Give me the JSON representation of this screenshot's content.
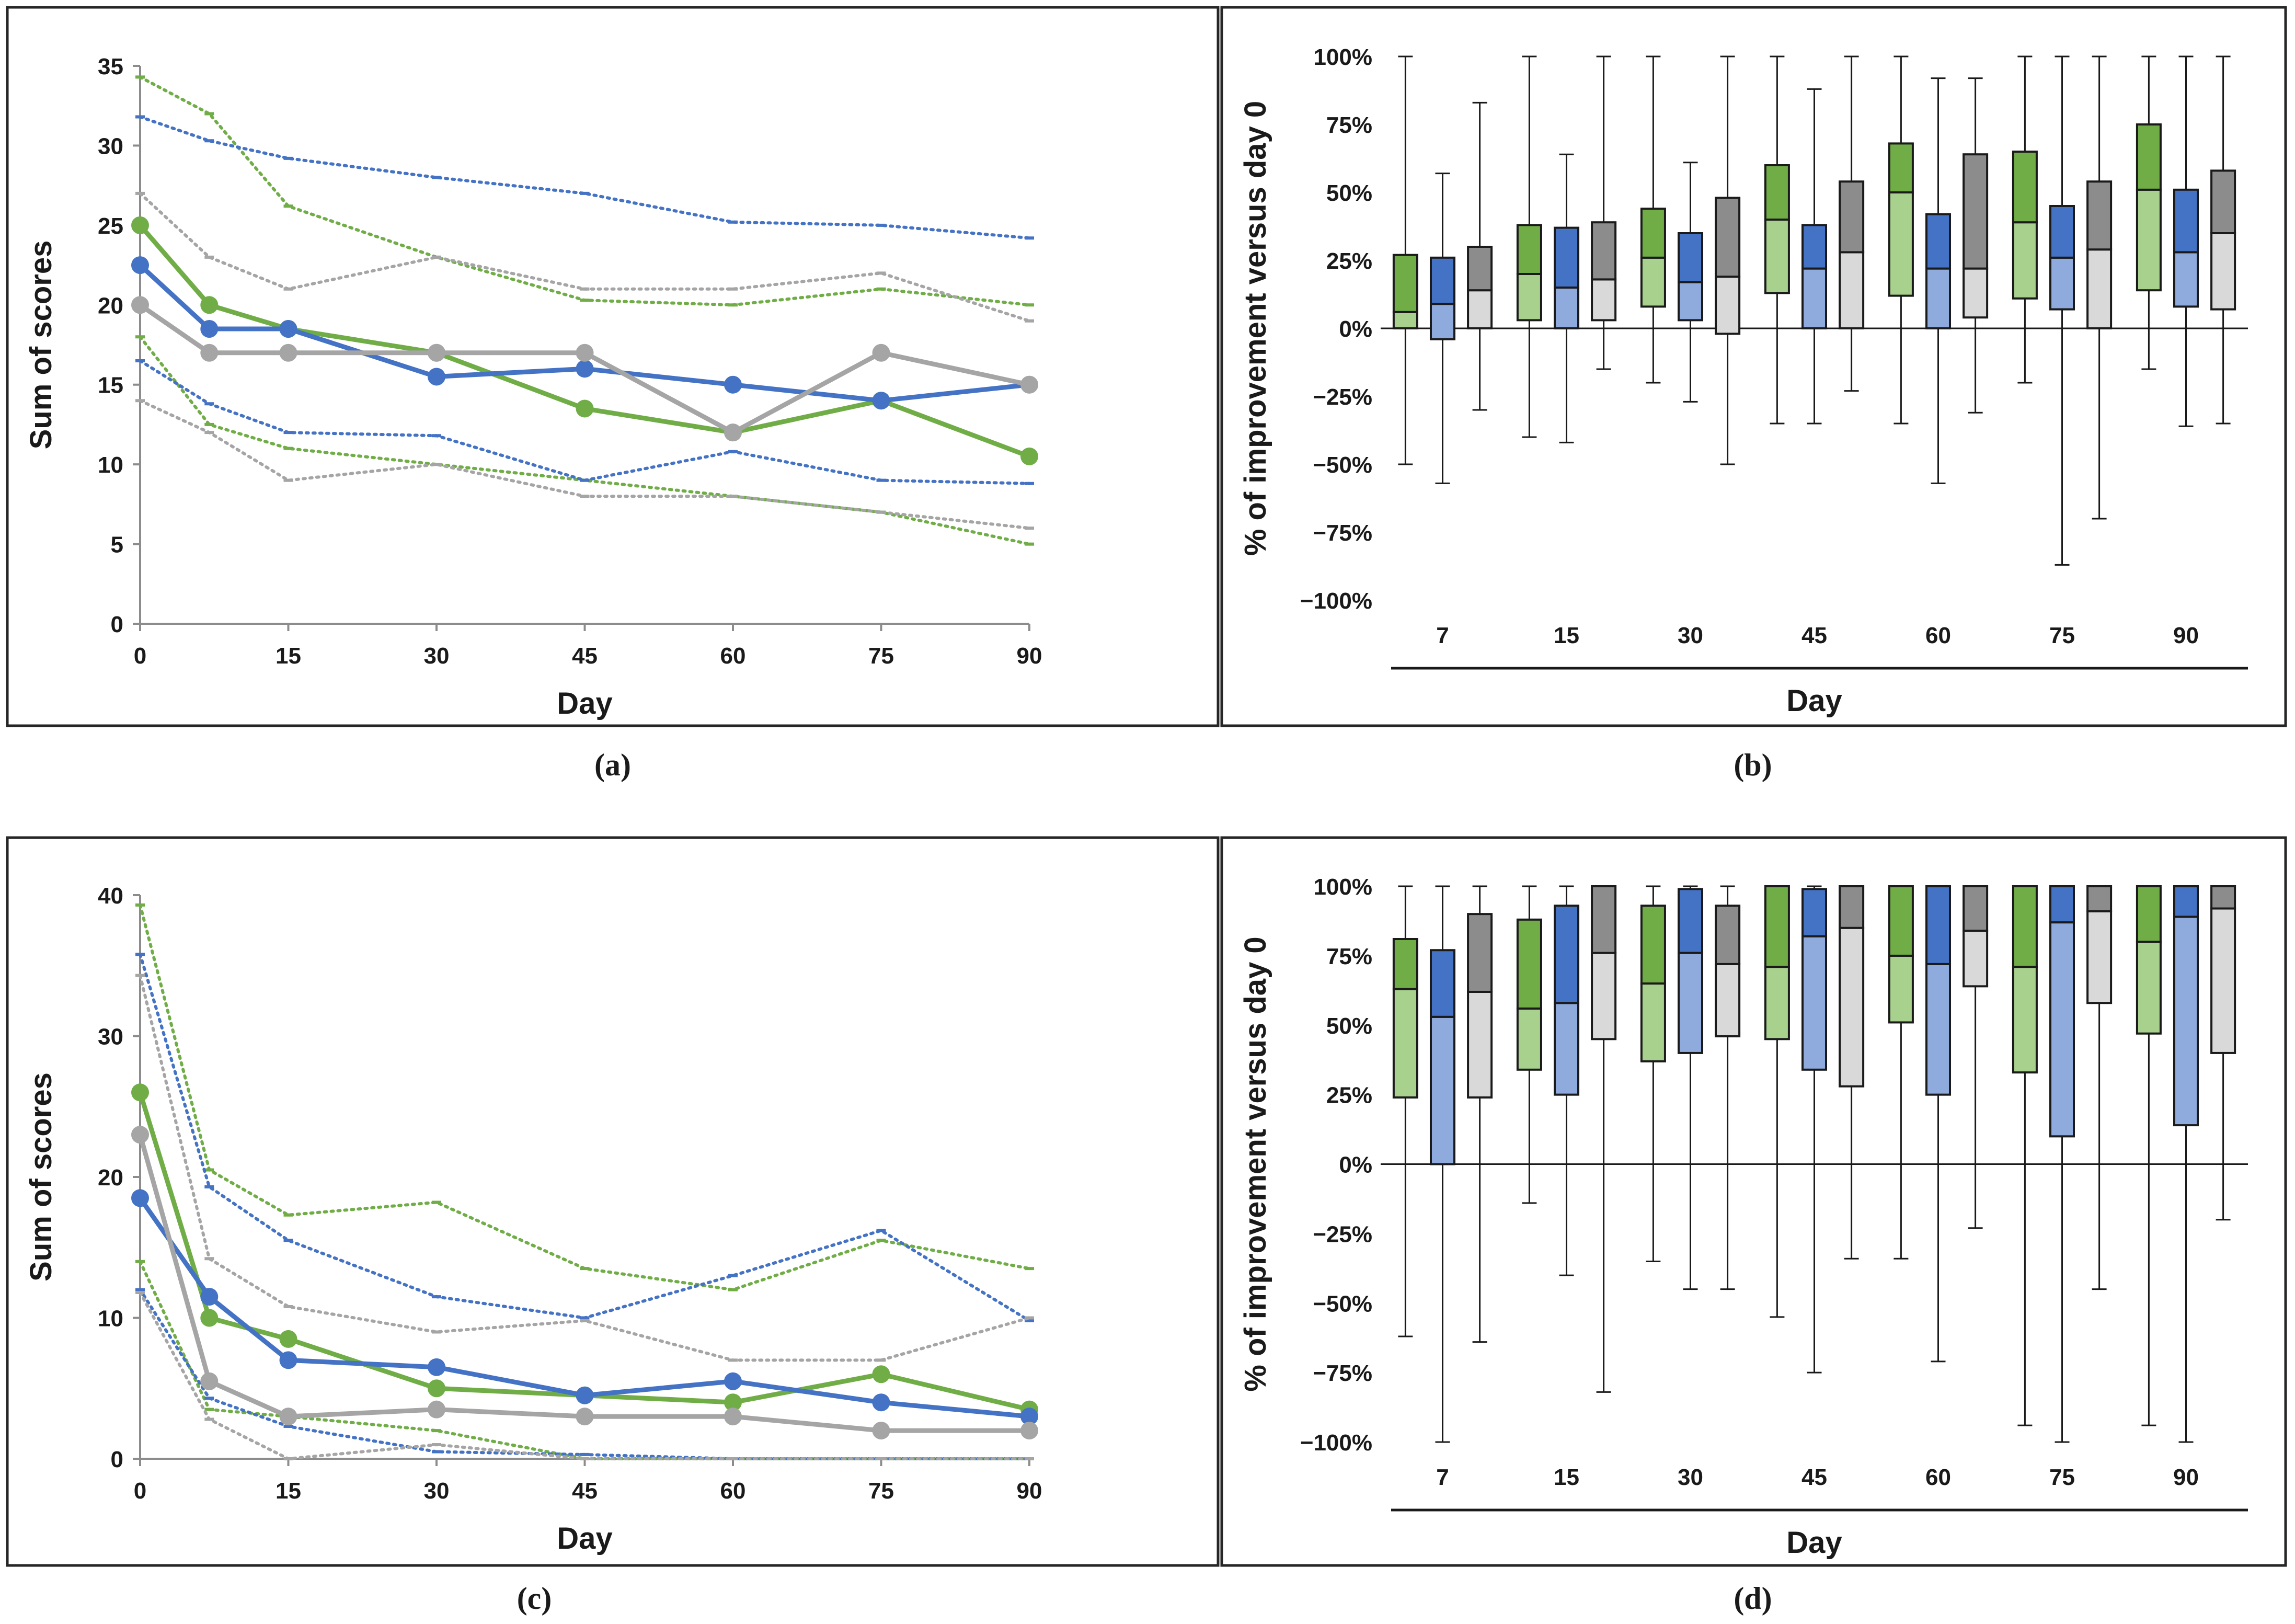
{
  "figure": {
    "captions": [
      "(a)",
      "(b)",
      "(c)",
      "(d)"
    ]
  },
  "colors": {
    "green": "#70ad47",
    "green_light": "#a9d18e",
    "blue": "#4472c4",
    "blue_light": "#8faadc",
    "gray": "#a5a5a5",
    "gray_light": "#d9d9d9",
    "gray_dark": "#8c8c8c"
  },
  "chart_data": [
    {
      "id": "a",
      "type": "line",
      "caption": "(a)",
      "xlabel": "Day",
      "ylabel": "Sum of scores",
      "xlim": [
        0,
        90
      ],
      "ylim": [
        0,
        35
      ],
      "xticks": [
        "0",
        "15",
        "30",
        "45",
        "60",
        "75",
        "90"
      ],
      "yticks": [
        "0",
        "5",
        "10",
        "15",
        "20",
        "25",
        "30",
        "35"
      ],
      "x": [
        0,
        7,
        15,
        30,
        45,
        60,
        75,
        90
      ],
      "series": [
        {
          "name": "green median",
          "color": "green",
          "style": "solid",
          "values": [
            25,
            20,
            18.5,
            17,
            13.5,
            12,
            14,
            10.5
          ]
        },
        {
          "name": "blue median",
          "color": "blue",
          "style": "solid",
          "values": [
            22.5,
            18.5,
            18.5,
            15.5,
            16,
            15,
            14,
            15
          ]
        },
        {
          "name": "gray median",
          "color": "gray",
          "style": "solid",
          "values": [
            20,
            17,
            17,
            17,
            17,
            12,
            17,
            15
          ]
        },
        {
          "name": "green upper",
          "color": "green",
          "style": "dotted",
          "values": [
            34.3,
            32,
            26.2,
            23,
            20.3,
            20,
            21,
            20
          ]
        },
        {
          "name": "green lower",
          "color": "green",
          "style": "dotted",
          "values": [
            18,
            12.5,
            11,
            10,
            9,
            8,
            7,
            5
          ]
        },
        {
          "name": "blue upper",
          "color": "blue",
          "style": "dotted",
          "values": [
            31.8,
            30.3,
            29.2,
            28,
            27,
            25.2,
            25,
            24.2
          ]
        },
        {
          "name": "blue lower",
          "color": "blue",
          "style": "dotted",
          "values": [
            16.5,
            13.8,
            12,
            11.8,
            9,
            10.8,
            9,
            8.8
          ]
        },
        {
          "name": "gray upper",
          "color": "gray",
          "style": "dotted",
          "values": [
            27,
            23,
            21,
            23,
            21,
            21,
            22,
            19
          ]
        },
        {
          "name": "gray lower",
          "color": "gray",
          "style": "dotted",
          "values": [
            14,
            12,
            9,
            10,
            8,
            8,
            7,
            6
          ]
        }
      ]
    },
    {
      "id": "b",
      "type": "box",
      "caption": "(b)",
      "xlabel": "Day",
      "ylabel": "% of improvement versus day 0",
      "ylim": [
        -100,
        100
      ],
      "yticks": [
        "100%",
        "75%",
        "50%",
        "25%",
        "0%",
        "−25%",
        "−50%",
        "−75%",
        "−100%"
      ],
      "categories": [
        "7",
        "15",
        "30",
        "45",
        "60",
        "75",
        "90"
      ],
      "groups": [
        {
          "group": "7",
          "boxes": [
            {
              "color": "green",
              "min": -50,
              "q1": 0,
              "median": 6,
              "q3": 27,
              "max": 100
            },
            {
              "color": "blue",
              "min": -57,
              "q1": -4,
              "median": 9,
              "q3": 26,
              "max": 57
            },
            {
              "color": "gray",
              "min": -30,
              "q1": 0,
              "median": 14,
              "q3": 30,
              "max": 83
            }
          ]
        },
        {
          "group": "15",
          "boxes": [
            {
              "color": "green",
              "min": -40,
              "q1": 3,
              "median": 20,
              "q3": 38,
              "max": 100
            },
            {
              "color": "blue",
              "min": -42,
              "q1": 0,
              "median": 15,
              "q3": 37,
              "max": 64
            },
            {
              "color": "gray",
              "min": -15,
              "q1": 3,
              "median": 18,
              "q3": 39,
              "max": 100
            }
          ]
        },
        {
          "group": "30",
          "boxes": [
            {
              "color": "green",
              "min": -20,
              "q1": 8,
              "median": 26,
              "q3": 44,
              "max": 100
            },
            {
              "color": "blue",
              "min": -27,
              "q1": 3,
              "median": 17,
              "q3": 35,
              "max": 61
            },
            {
              "color": "gray",
              "min": -50,
              "q1": -2,
              "median": 19,
              "q3": 48,
              "max": 100
            }
          ]
        },
        {
          "group": "45",
          "boxes": [
            {
              "color": "green",
              "min": -35,
              "q1": 13,
              "median": 40,
              "q3": 60,
              "max": 100
            },
            {
              "color": "blue",
              "min": -35,
              "q1": 0,
              "median": 22,
              "q3": 38,
              "max": 88
            },
            {
              "color": "gray",
              "min": -23,
              "q1": 0,
              "median": 28,
              "q3": 54,
              "max": 100
            }
          ]
        },
        {
          "group": "60",
          "boxes": [
            {
              "color": "green",
              "min": -35,
              "q1": 12,
              "median": 50,
              "q3": 68,
              "max": 100
            },
            {
              "color": "blue",
              "min": -57,
              "q1": 0,
              "median": 22,
              "q3": 42,
              "max": 92
            },
            {
              "color": "gray",
              "min": -31,
              "q1": 4,
              "median": 22,
              "q3": 64,
              "max": 92
            }
          ]
        },
        {
          "group": "75",
          "boxes": [
            {
              "color": "green",
              "min": -20,
              "q1": 11,
              "median": 39,
              "q3": 65,
              "max": 100
            },
            {
              "color": "blue",
              "min": -87,
              "q1": 7,
              "median": 26,
              "q3": 45,
              "max": 100
            },
            {
              "color": "gray",
              "min": -70,
              "q1": 0,
              "median": 29,
              "q3": 54,
              "max": 100
            }
          ]
        },
        {
          "group": "90",
          "boxes": [
            {
              "color": "green",
              "min": -15,
              "q1": 14,
              "median": 51,
              "q3": 75,
              "max": 100
            },
            {
              "color": "blue",
              "min": -36,
              "q1": 8,
              "median": 28,
              "q3": 51,
              "max": 100
            },
            {
              "color": "gray",
              "min": -35,
              "q1": 7,
              "median": 35,
              "q3": 58,
              "max": 100
            }
          ]
        }
      ]
    },
    {
      "id": "c",
      "type": "line",
      "caption": "(c)",
      "xlabel": "Day",
      "ylabel": "Sum of scores",
      "xlim": [
        0,
        90
      ],
      "ylim": [
        0,
        40
      ],
      "xticks": [
        "0",
        "15",
        "30",
        "45",
        "60",
        "75",
        "90"
      ],
      "yticks": [
        "0",
        "10",
        "20",
        "30",
        "40"
      ],
      "x": [
        0,
        7,
        15,
        30,
        45,
        60,
        75,
        90
      ],
      "series": [
        {
          "name": "green median",
          "color": "green",
          "style": "solid",
          "values": [
            26,
            10,
            8.5,
            5,
            4.5,
            4,
            6,
            3.5
          ]
        },
        {
          "name": "blue median",
          "color": "blue",
          "style": "solid",
          "values": [
            18.5,
            11.5,
            7,
            6.5,
            4.5,
            5.5,
            4,
            3
          ]
        },
        {
          "name": "gray median",
          "color": "gray",
          "style": "solid",
          "values": [
            23,
            5.5,
            3,
            3.5,
            3,
            3,
            2,
            2
          ]
        },
        {
          "name": "green upper",
          "color": "green",
          "style": "dotted",
          "values": [
            39.3,
            20.5,
            17.3,
            18.2,
            13.5,
            12,
            15.5,
            13.5
          ]
        },
        {
          "name": "green lower",
          "color": "green",
          "style": "dotted",
          "values": [
            14,
            3.5,
            3,
            2,
            0,
            0,
            0,
            0
          ]
        },
        {
          "name": "blue upper",
          "color": "blue",
          "style": "dotted",
          "values": [
            35.8,
            19.3,
            15.5,
            11.5,
            10,
            13,
            16.2,
            9.8
          ]
        },
        {
          "name": "blue lower",
          "color": "blue",
          "style": "dotted",
          "values": [
            12,
            4.3,
            2.3,
            0.5,
            0.3,
            0,
            0,
            0
          ]
        },
        {
          "name": "gray upper",
          "color": "gray",
          "style": "dotted",
          "values": [
            34.3,
            14.2,
            10.8,
            9,
            9.8,
            7,
            7,
            10
          ]
        },
        {
          "name": "gray lower",
          "color": "gray",
          "style": "dotted",
          "values": [
            11.8,
            2.8,
            0,
            1,
            0,
            0,
            0,
            0
          ]
        }
      ]
    },
    {
      "id": "d",
      "type": "box",
      "caption": "(d)",
      "xlabel": "Day",
      "ylabel": "% of improvement versus day 0",
      "ylim": [
        -100,
        100
      ],
      "yticks": [
        "100%",
        "75%",
        "50%",
        "25%",
        "0%",
        "−25%",
        "−50%",
        "−75%",
        "−100%"
      ],
      "categories": [
        "7",
        "15",
        "30",
        "45",
        "60",
        "75",
        "90"
      ],
      "groups": [
        {
          "group": "7",
          "boxes": [
            {
              "color": "green",
              "min": -62,
              "q1": 24,
              "median": 63,
              "q3": 81,
              "max": 100
            },
            {
              "color": "blue",
              "min": -100,
              "q1": 0,
              "median": 53,
              "q3": 77,
              "max": 100
            },
            {
              "color": "gray",
              "min": -64,
              "q1": 24,
              "median": 62,
              "q3": 90,
              "max": 100
            }
          ]
        },
        {
          "group": "15",
          "boxes": [
            {
              "color": "green",
              "min": -14,
              "q1": 34,
              "median": 56,
              "q3": 88,
              "max": 100
            },
            {
              "color": "blue",
              "min": -40,
              "q1": 25,
              "median": 58,
              "q3": 93,
              "max": 100
            },
            {
              "color": "gray",
              "min": -82,
              "q1": 45,
              "median": 76,
              "q3": 100,
              "max": 100
            }
          ]
        },
        {
          "group": "30",
          "boxes": [
            {
              "color": "green",
              "min": -35,
              "q1": 37,
              "median": 65,
              "q3": 93,
              "max": 100
            },
            {
              "color": "blue",
              "min": -45,
              "q1": 40,
              "median": 76,
              "q3": 99,
              "max": 100
            },
            {
              "color": "gray",
              "min": -45,
              "q1": 46,
              "median": 72,
              "q3": 93,
              "max": 100
            }
          ]
        },
        {
          "group": "45",
          "boxes": [
            {
              "color": "green",
              "min": -55,
              "q1": 45,
              "median": 71,
              "q3": 100,
              "max": 100
            },
            {
              "color": "blue",
              "min": -75,
              "q1": 34,
              "median": 82,
              "q3": 99,
              "max": 100
            },
            {
              "color": "gray",
              "min": -34,
              "q1": 28,
              "median": 85,
              "q3": 100,
              "max": 100
            }
          ]
        },
        {
          "group": "60",
          "boxes": [
            {
              "color": "green",
              "min": -34,
              "q1": 51,
              "median": 75,
              "q3": 100,
              "max": 100
            },
            {
              "color": "blue",
              "min": -71,
              "q1": 25,
              "median": 72,
              "q3": 100,
              "max": 100
            },
            {
              "color": "gray",
              "min": -23,
              "q1": 64,
              "median": 84,
              "q3": 100,
              "max": 100
            }
          ]
        },
        {
          "group": "75",
          "boxes": [
            {
              "color": "green",
              "min": -94,
              "q1": 33,
              "median": 71,
              "q3": 100,
              "max": 100
            },
            {
              "color": "blue",
              "min": -100,
              "q1": 10,
              "median": 87,
              "q3": 100,
              "max": 100
            },
            {
              "color": "gray",
              "min": -45,
              "q1": 58,
              "median": 91,
              "q3": 100,
              "max": 100
            }
          ]
        },
        {
          "group": "90",
          "boxes": [
            {
              "color": "green",
              "min": -94,
              "q1": 47,
              "median": 80,
              "q3": 100,
              "max": 100
            },
            {
              "color": "blue",
              "min": -100,
              "q1": 14,
              "median": 89,
              "q3": 100,
              "max": 100
            },
            {
              "color": "gray",
              "min": -20,
              "q1": 40,
              "median": 92,
              "q3": 100,
              "max": 100
            }
          ]
        }
      ]
    }
  ]
}
